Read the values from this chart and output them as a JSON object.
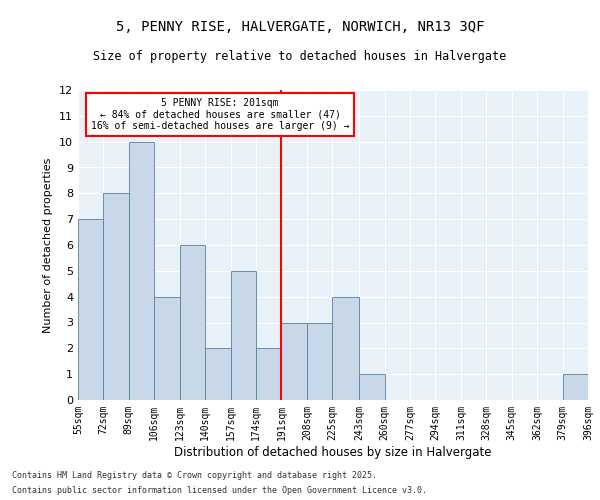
{
  "title_line1": "5, PENNY RISE, HALVERGATE, NORWICH, NR13 3QF",
  "title_line2": "Size of property relative to detached houses in Halvergate",
  "xlabel": "Distribution of detached houses by size in Halvergate",
  "ylabel": "Number of detached properties",
  "bar_edges": [
    55,
    72,
    89,
    106,
    123,
    140,
    157,
    174,
    191,
    208,
    225,
    243,
    260,
    277,
    294,
    311,
    328,
    345,
    362,
    379,
    396
  ],
  "bar_values": [
    7,
    8,
    10,
    4,
    6,
    2,
    5,
    2,
    3,
    3,
    4,
    1,
    0,
    0,
    0,
    0,
    0,
    0,
    0,
    1
  ],
  "bar_color": "#c8d8e8",
  "bar_edgecolor": "#5580a0",
  "vline_x": 191,
  "annotation_line1": "5 PENNY RISE: 201sqm",
  "annotation_line2": "← 84% of detached houses are smaller (47)",
  "annotation_line3": "16% of semi-detached houses are larger (9) →",
  "annotation_box_color": "white",
  "annotation_box_edgecolor": "red",
  "vline_color": "red",
  "ylim": [
    0,
    12
  ],
  "yticks": [
    0,
    1,
    2,
    3,
    4,
    5,
    6,
    7,
    8,
    9,
    10,
    11,
    12
  ],
  "tick_labels": [
    "55sqm",
    "72sqm",
    "89sqm",
    "106sqm",
    "123sqm",
    "140sqm",
    "157sqm",
    "174sqm",
    "191sqm",
    "208sqm",
    "225sqm",
    "243sqm",
    "260sqm",
    "277sqm",
    "294sqm",
    "311sqm",
    "328sqm",
    "345sqm",
    "362sqm",
    "379sqm",
    "396sqm"
  ],
  "background_color": "#e8f0f8",
  "grid_color": "white",
  "footnote_line1": "Contains HM Land Registry data © Crown copyright and database right 2025.",
  "footnote_line2": "Contains public sector information licensed under the Open Government Licence v3.0."
}
